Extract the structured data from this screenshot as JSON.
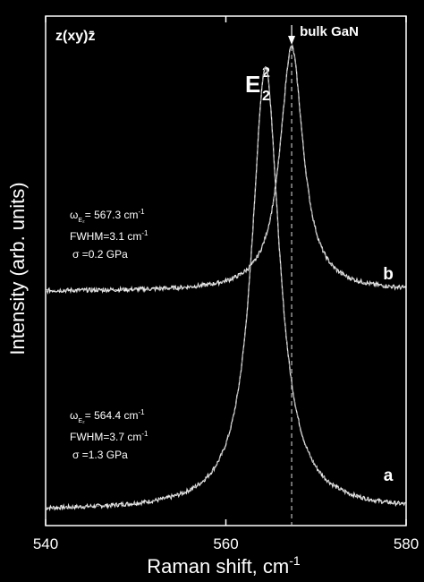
{
  "chart_data": {
    "type": "line",
    "xlabel": "Raman shift, cm",
    "xlabel_sup": "-1",
    "ylabel": "Intensity (arb. units)",
    "xlim": [
      540,
      580
    ],
    "x_ticks": [
      540,
      560,
      580
    ],
    "y_ticks": "none",
    "grid": false,
    "background": "#000000",
    "foreground": "#ffffff",
    "geometry_label": "z(xy)z̄",
    "reference_line": {
      "x": 567.3,
      "label": "bulk GaN",
      "style": "dashed"
    },
    "peak_label": {
      "base": "E",
      "sup": "2",
      "sub": "2"
    },
    "series": [
      {
        "name": "a",
        "center": 564.4,
        "fwhm": 3.7,
        "stress": 1.3,
        "baseline": 0.03,
        "peak_height": 0.9,
        "annotation": {
          "omega_prefix": "ω",
          "omega_sub": "E₂",
          "omega_value": "=  564.4 cm",
          "omega_unit_sup": "-1",
          "fwhm_text": "FWHM=3.7 cm",
          "fwhm_unit_sup": "-1",
          "sigma_text": "σ =1.3 GPa"
        }
      },
      {
        "name": "b",
        "center": 567.3,
        "fwhm": 3.1,
        "stress": 0.2,
        "baseline": 0.46,
        "peak_height": 0.94,
        "annotation": {
          "omega_prefix": "ω",
          "omega_sub": "E₂",
          "omega_value": "=  567.3 cm",
          "omega_unit_sup": "-1",
          "fwhm_text": "FWHM=3.1 cm",
          "fwhm_unit_sup": "-1",
          "sigma_text": "σ =0.2 GPa"
        }
      }
    ]
  }
}
